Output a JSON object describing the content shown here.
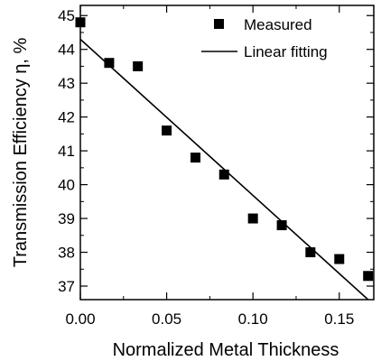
{
  "chart_data": {
    "type": "scatter",
    "xlabel": "Normalized Metal Thickness",
    "ylabel": "Transmission Efficiency η, %",
    "xlim": [
      0,
      0.17
    ],
    "ylim": [
      36.6,
      45.3
    ],
    "x_ticks": [
      "0.00",
      "0.05",
      "0.10",
      "0.15"
    ],
    "x_tick_values": [
      0,
      0.05,
      0.1,
      0.15
    ],
    "y_ticks": [
      "37",
      "38",
      "39",
      "40",
      "41",
      "42",
      "43",
      "44",
      "45"
    ],
    "y_tick_values": [
      37,
      38,
      39,
      40,
      41,
      42,
      43,
      44,
      45
    ],
    "grid": false,
    "legend_position": "top-right",
    "series": [
      {
        "name": "Measured",
        "marker": "square",
        "x": [
          0,
          0.0167,
          0.0333,
          0.05,
          0.0667,
          0.0833,
          0.1,
          0.1167,
          0.1333,
          0.15,
          0.1667
        ],
        "y": [
          44.8,
          43.6,
          43.5,
          41.6,
          40.8,
          40.3,
          39.0,
          38.8,
          38.0,
          37.8,
          37.3
        ]
      },
      {
        "name": "Linear fitting",
        "marker": "line",
        "x": [
          0,
          0.1667
        ],
        "y": [
          44.3,
          36.6
        ]
      }
    ],
    "color": "#000000"
  }
}
